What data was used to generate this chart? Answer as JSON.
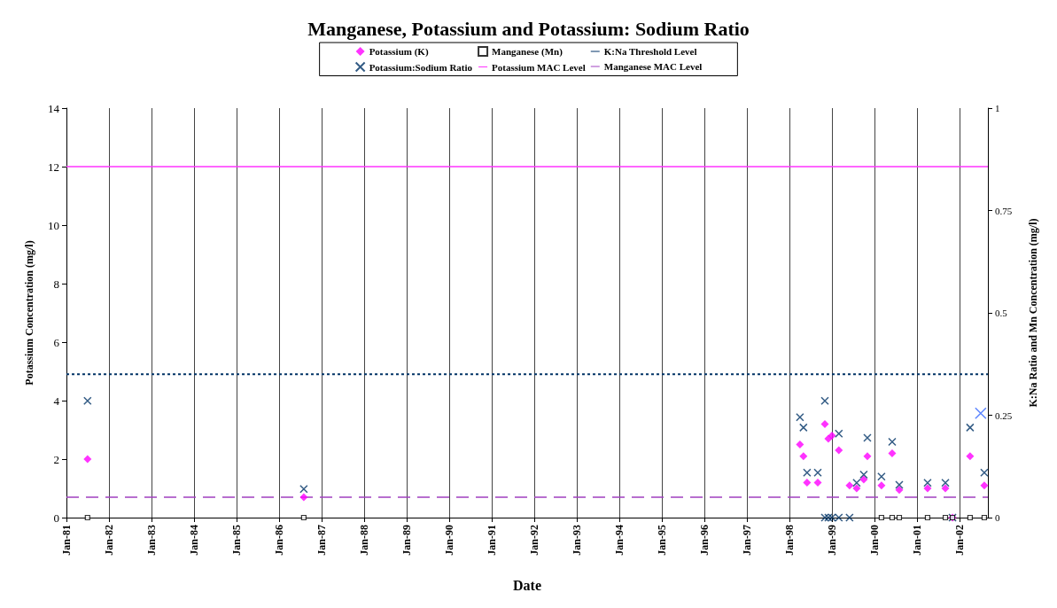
{
  "chart_data": {
    "type": "scatter",
    "title": "Manganese, Potassium and Potassium: Sodium Ratio",
    "xlabel": "Date",
    "ylabel": "Potassium Concentration (mg/l)",
    "y2label": "K:Na Ratio and Mn Concentration (mg/l)",
    "xlim": [
      "1981-01",
      "2002-09"
    ],
    "xticks": [
      {
        "value": "1981-01",
        "label": "Jan-81"
      },
      {
        "value": "1982-01",
        "label": "Jan-82"
      },
      {
        "value": "1983-01",
        "label": "Jan-83"
      },
      {
        "value": "1984-01",
        "label": "Jan-84"
      },
      {
        "value": "1985-01",
        "label": "Jan-85"
      },
      {
        "value": "1986-01",
        "label": "Jan-86"
      },
      {
        "value": "1987-01",
        "label": "Jan-87"
      },
      {
        "value": "1988-01",
        "label": "Jan-88"
      },
      {
        "value": "1989-01",
        "label": "Jan-89"
      },
      {
        "value": "1990-01",
        "label": "Jan-90"
      },
      {
        "value": "1991-01",
        "label": "Jan-91"
      },
      {
        "value": "1992-01",
        "label": "Jan-92"
      },
      {
        "value": "1993-01",
        "label": "Jan-93"
      },
      {
        "value": "1994-01",
        "label": "Jan-94"
      },
      {
        "value": "1995-01",
        "label": "Jan-95"
      },
      {
        "value": "1996-01",
        "label": "Jan-96"
      },
      {
        "value": "1997-01",
        "label": "Jan-97"
      },
      {
        "value": "1998-01",
        "label": "Jan-98"
      },
      {
        "value": "1999-01",
        "label": "Jan-99"
      },
      {
        "value": "2000-01",
        "label": "Jan-00"
      },
      {
        "value": "2001-01",
        "label": "Jan-01"
      },
      {
        "value": "2002-01",
        "label": "Jan-02"
      }
    ],
    "ylim": [
      0,
      14
    ],
    "yticks": [
      0,
      2,
      4,
      6,
      8,
      10,
      12,
      14
    ],
    "y2lim": [
      0,
      1
    ],
    "y2ticks": [
      0,
      0.25,
      0.5,
      0.75,
      1
    ],
    "grid": "x",
    "legend": "top",
    "series": [
      {
        "name": "Potassium (K)",
        "color": "#ff00ff",
        "marker": "diamond",
        "x": [
          "1981-07",
          "1986-08",
          "1998-04",
          "1998-05",
          "1998-06",
          "1998-09",
          "1998-11",
          "1998-12",
          "1999-01",
          "1999-03",
          "1999-06",
          "1999-08",
          "1999-10",
          "1999-11",
          "2000-03",
          "2000-06",
          "2000-08",
          "2001-04",
          "2001-09",
          "2001-11",
          "2002-04",
          "2002-08"
        ],
        "values": [
          2.0,
          0.7,
          2.5,
          2.1,
          1.2,
          1.2,
          3.2,
          2.7,
          2.8,
          2.3,
          1.1,
          1.0,
          1.3,
          2.1,
          1.1,
          2.2,
          0.95,
          1.0,
          1.0,
          0,
          2.1,
          1.1
        ]
      },
      {
        "name": "Potassium:Sodium Ratio",
        "color": "#003366",
        "marker": "cross",
        "axis": "y2",
        "x": [
          "1981-07",
          "1986-08",
          "1998-04",
          "1998-05",
          "1998-06",
          "1998-09",
          "1998-11",
          "1998-11",
          "1998-12",
          "1999-01",
          "1999-03",
          "1999-03",
          "1999-06",
          "1999-08",
          "1999-10",
          "1999-11",
          "2000-03",
          "2000-06",
          "2000-08",
          "2001-04",
          "2001-09",
          "2001-11",
          "2002-04",
          "2002-07",
          "2002-08"
        ],
        "values": [
          0.285,
          0.07,
          0.245,
          0.22,
          0.11,
          0.11,
          0.285,
          0,
          0,
          0,
          0.205,
          0,
          0,
          0.085,
          0.105,
          0.195,
          0.1,
          0.185,
          0.08,
          0.085,
          0.085,
          0,
          0.22,
          0.255,
          0.11
        ],
        "colors": [
          "#003366",
          "#003366",
          "#003366",
          "#003366",
          "#003366",
          "#003366",
          "#003366",
          "#003366",
          "#003366",
          "#003366",
          "#003366",
          "#003366",
          "#003366",
          "#003366",
          "#003366",
          "#003366",
          "#003366",
          "#003366",
          "#003366",
          "#003366",
          "#003366",
          "#003366",
          "#003366",
          "#3366ff",
          "#003366"
        ]
      },
      {
        "name": "Manganese (Mn)",
        "color": "#000000",
        "marker": "square",
        "axis": "y2",
        "x": [
          "1981-07",
          "1986-08",
          "2000-03",
          "2000-06",
          "2000-08",
          "2001-04",
          "2001-09",
          "2001-11",
          "2002-04",
          "2002-08"
        ],
        "values": [
          0,
          0,
          0,
          0,
          0,
          0,
          0,
          0,
          0,
          0
        ]
      }
    ],
    "ref_lines": [
      {
        "axis": "y",
        "value": 12,
        "label": "Potassium MAC Level",
        "color": "#ff33ff",
        "line_style": "solid"
      },
      {
        "axis": "y2",
        "value": 0.35,
        "label": "K:Na Threshold Level",
        "color": "#003366",
        "line_style": "dotted"
      },
      {
        "axis": "y2",
        "value": 0.05,
        "label": "Manganese MAC Level",
        "color": "#a040c0",
        "line_style": "dashed"
      }
    ]
  }
}
